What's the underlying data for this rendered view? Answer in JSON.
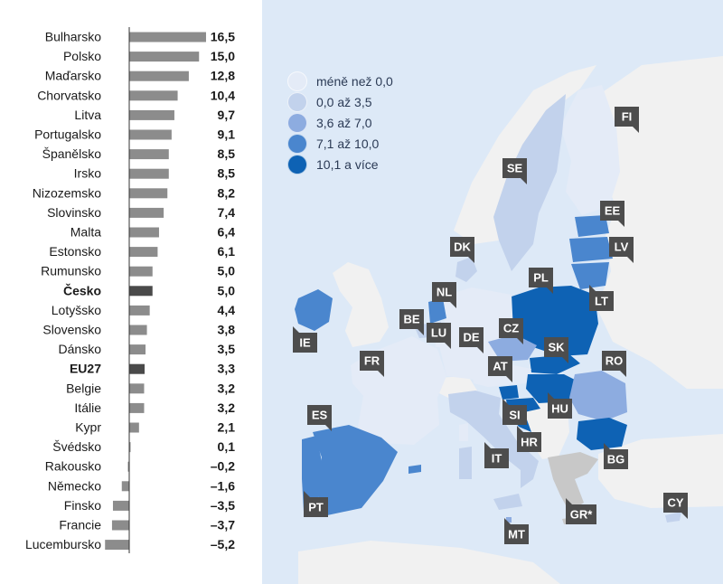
{
  "colors": {
    "sea": "#dde9f7",
    "neutral_land": "#f1f1f1",
    "grey_land": "#c8c8c8",
    "bar": "#8c8c8c",
    "bar_highlight": "#4a4a4a",
    "tag": "#4d4d4d"
  },
  "chart_data": {
    "type": "bar",
    "orientation": "horizontal",
    "categories": [
      "Bulharsko",
      "Polsko",
      "Maďarsko",
      "Chorvatsko",
      "Litva",
      "Portugalsko",
      "Španělsko",
      "Irsko",
      "Nizozemsko",
      "Slovinsko",
      "Malta",
      "Estonsko",
      "Rumunsko",
      "Česko",
      "Lotyšsko",
      "Slovensko",
      "Dánsko",
      "EU27",
      "Belgie",
      "Itálie",
      "Kypr",
      "Švédsko",
      "Rakousko",
      "Německo",
      "Finsko",
      "Francie",
      "Lucembursko"
    ],
    "value_labels": [
      "16,5",
      "15,0",
      "12,8",
      "10,4",
      "9,7",
      "9,1",
      "8,5",
      "8,5",
      "8,2",
      "7,4",
      "6,4",
      "6,1",
      "5,0",
      "5,0",
      "4,4",
      "3,8",
      "3,5",
      "3,3",
      "3,2",
      "3,2",
      "2,1",
      "0,1",
      "–0,2",
      "–1,6",
      "–3,5",
      "–3,7",
      "–5,2"
    ],
    "values": [
      16.5,
      15.0,
      12.8,
      10.4,
      9.7,
      9.1,
      8.5,
      8.5,
      8.2,
      7.4,
      6.4,
      6.1,
      5.0,
      5.0,
      4.4,
      3.8,
      3.5,
      3.3,
      3.2,
      3.2,
      2.1,
      0.1,
      -0.2,
      -1.6,
      -3.5,
      -3.7,
      -5.2
    ],
    "highlighted": [
      "Česko",
      "EU27"
    ]
  },
  "map": {
    "legend": [
      {
        "label": "méně než 0,0",
        "color": "#e4ebf7"
      },
      {
        "label": "0,0 až 3,5",
        "color": "#c2d2ec"
      },
      {
        "label": "3,6 až 7,0",
        "color": "#8dace0"
      },
      {
        "label": "7,1 až 10,0",
        "color": "#4a86ce"
      },
      {
        "label": "10,1 a více",
        "color": "#0e62b4"
      }
    ],
    "country_tags": [
      "FI",
      "SE",
      "EE",
      "LV",
      "DK",
      "LT",
      "PL",
      "NL",
      "IE",
      "BE",
      "LU",
      "DE",
      "CZ",
      "SK",
      "FR",
      "AT",
      "RO",
      "HU",
      "ES",
      "SI",
      "HR",
      "BG",
      "IT",
      "PT",
      "GR*",
      "MT",
      "CY"
    ]
  }
}
